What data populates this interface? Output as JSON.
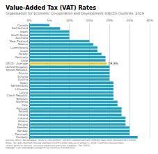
{
  "chart_data": {
    "type": "bar",
    "orientation": "horizontal",
    "title": "Value-Added Tax (VAT) Rates",
    "subtitle": "Organisation for Economic Co-operation and Development (OECD) countries, 2019",
    "footer": "Sources: OECD, Tax Database, Taxes on consumption, VAT/GST: standard and any reduced rates 2019 (retrieved 04/13/2020).\nNotes: Tax rates reported here are standard (country-wide) rates as of January 1, 2019. Countries may also have\ncertain goods or services, visit oecd.org/tax/tax-policy/tax-database. The \"OECD\nAverage\" is an unweighted average for all countries included here.",
    "categories": [
      "Hungary",
      "Denmark",
      "Norway",
      "Sweden",
      "Finland",
      "Greece",
      "Iceland",
      "Ireland",
      "Poland",
      "Portugal",
      "Italy",
      "Slovenia",
      "Belgium",
      "Czech Republic",
      "Latvia",
      "Lithuania",
      "Netherlands",
      "Spain",
      "Austria",
      "Estonia",
      "France",
      "Slovak Republic",
      "United Kingdom",
      "OECD - Average",
      "Chile",
      "Germany",
      "Turkey",
      "Israel",
      "Luxembourg",
      "Mexico",
      "New Zealand",
      "Australia",
      "South Korea",
      "Japan",
      "Switzerland",
      "Canada"
    ],
    "values": [
      27,
      25,
      25,
      25,
      24,
      24,
      24,
      23,
      23,
      23,
      22,
      22,
      21,
      21,
      21,
      21,
      21,
      21,
      20,
      20,
      20,
      20,
      20,
      19.3,
      19,
      19,
      18,
      17,
      17,
      16,
      15,
      10,
      10,
      10,
      7.7,
      5
    ],
    "colors": [
      "#1a9fc0",
      "#1a9fc0",
      "#1a9fc0",
      "#1a9fc0",
      "#1a9fc0",
      "#1a9fc0",
      "#1a9fc0",
      "#1a9fc0",
      "#1a9fc0",
      "#1a9fc0",
      "#1a9fc0",
      "#1a9fc0",
      "#1a9fc0",
      "#1a9fc0",
      "#1a9fc0",
      "#1a9fc0",
      "#1a9fc0",
      "#1a9fc0",
      "#1a9fc0",
      "#1a9fc0",
      "#1a9fc0",
      "#1a9fc0",
      "#1a9fc0",
      "#f5c518",
      "#1a9fc0",
      "#1a9fc0",
      "#1a9fc0",
      "#1a9fc0",
      "#1a9fc0",
      "#1a9fc0",
      "#1a9fc0",
      "#1a9fc0",
      "#1a9fc0",
      "#1a9fc0",
      "#1a9fc0",
      "#1a9fc0"
    ],
    "annotations": [
      {
        "text": "19.3%",
        "x": 19.3,
        "y": "OECD - Average"
      }
    ],
    "xlim": [
      0,
      30
    ],
    "xticks": [
      {
        "value": 0,
        "label": "0%"
      },
      {
        "value": 5,
        "label": "5%"
      },
      {
        "value": 10,
        "label": "10%"
      },
      {
        "value": 15,
        "label": "15%"
      },
      {
        "value": 20,
        "label": "20%"
      },
      {
        "value": 25,
        "label": "25%"
      },
      {
        "value": 30,
        "label": "30%"
      }
    ],
    "grid": true
  }
}
